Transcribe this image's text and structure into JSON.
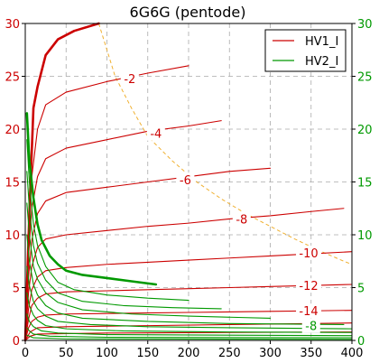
{
  "chart_data": {
    "type": "line",
    "title": "6G6G (pentode)",
    "xlim": [
      0,
      400
    ],
    "ylim_left": [
      0,
      30
    ],
    "ylim_right": [
      0,
      30
    ],
    "x_ticks": [
      "0",
      "50",
      "100",
      "150",
      "200",
      "250",
      "300",
      "350",
      "400"
    ],
    "y_ticks_left": [
      "0",
      "5",
      "10",
      "15",
      "20",
      "25",
      "30"
    ],
    "y_ticks_right": [
      "0",
      "5",
      "10",
      "15",
      "20",
      "25",
      "30"
    ],
    "grid": true,
    "legend": {
      "placement": "top-right",
      "entries": [
        {
          "label": "HV1_I",
          "color": "#cc0000"
        },
        {
          "label": "HV2_I",
          "color": "#009900"
        }
      ]
    },
    "colors": {
      "hv1": "#cc0000",
      "hv2": "#009900",
      "load": "#f0b030",
      "grid": "#aaaaaa"
    },
    "series": [
      {
        "name": "HV1_I",
        "grid_bias": "0",
        "thick": true,
        "points": [
          [
            0,
            0
          ],
          [
            5,
            12
          ],
          [
            10,
            22
          ],
          [
            15,
            24
          ],
          [
            25,
            27
          ],
          [
            40,
            28.5
          ],
          [
            60,
            29.3
          ],
          [
            90,
            30
          ]
        ]
      },
      {
        "name": "HV1_I",
        "grid_bias": "-2",
        "points": [
          [
            0,
            0
          ],
          [
            4,
            10
          ],
          [
            8,
            15.5
          ],
          [
            15,
            20
          ],
          [
            25,
            22.3
          ],
          [
            50,
            23.5
          ],
          [
            100,
            24.5
          ],
          [
            150,
            25.3
          ],
          [
            200,
            26
          ]
        ]
      },
      {
        "name": "HV1_I",
        "grid_bias": "-4",
        "points": [
          [
            0,
            0
          ],
          [
            4,
            8
          ],
          [
            8,
            12.5
          ],
          [
            15,
            15.5
          ],
          [
            25,
            17.2
          ],
          [
            50,
            18.2
          ],
          [
            100,
            19
          ],
          [
            150,
            19.8
          ],
          [
            200,
            20.3
          ],
          [
            240,
            20.8
          ]
        ]
      },
      {
        "name": "HV1_I",
        "grid_bias": "-6",
        "points": [
          [
            0,
            0
          ],
          [
            4,
            6
          ],
          [
            8,
            9.5
          ],
          [
            15,
            12
          ],
          [
            25,
            13.2
          ],
          [
            50,
            14
          ],
          [
            100,
            14.5
          ],
          [
            150,
            15
          ],
          [
            200,
            15.5
          ],
          [
            250,
            16
          ],
          [
            300,
            16.3
          ]
        ]
      },
      {
        "name": "HV1_I",
        "grid_bias": "-8",
        "points": [
          [
            0,
            0
          ],
          [
            4,
            4.5
          ],
          [
            8,
            7
          ],
          [
            15,
            8.8
          ],
          [
            25,
            9.6
          ],
          [
            50,
            10
          ],
          [
            100,
            10.4
          ],
          [
            150,
            10.8
          ],
          [
            200,
            11.1
          ],
          [
            250,
            11.5
          ],
          [
            300,
            11.8
          ],
          [
            350,
            12.2
          ],
          [
            390,
            12.5
          ]
        ]
      },
      {
        "name": "HV1_I",
        "grid_bias": "-10",
        "points": [
          [
            0,
            0
          ],
          [
            4,
            3
          ],
          [
            8,
            4.8
          ],
          [
            15,
            6
          ],
          [
            25,
            6.6
          ],
          [
            50,
            6.9
          ],
          [
            100,
            7.2
          ],
          [
            150,
            7.4
          ],
          [
            200,
            7.6
          ],
          [
            250,
            7.8
          ],
          [
            300,
            8
          ],
          [
            350,
            8.2
          ],
          [
            400,
            8.4
          ]
        ]
      },
      {
        "name": "HV1_I",
        "grid_bias": "-12",
        "points": [
          [
            0,
            0
          ],
          [
            4,
            2
          ],
          [
            8,
            3.3
          ],
          [
            15,
            4
          ],
          [
            25,
            4.4
          ],
          [
            50,
            4.6
          ],
          [
            100,
            4.7
          ],
          [
            150,
            4.8
          ],
          [
            200,
            4.9
          ],
          [
            250,
            5
          ],
          [
            300,
            5.1
          ],
          [
            350,
            5.2
          ],
          [
            400,
            5.3
          ]
        ]
      },
      {
        "name": "HV1_I",
        "grid_bias": "-14",
        "points": [
          [
            0,
            0
          ],
          [
            4,
            1.2
          ],
          [
            8,
            1.8
          ],
          [
            15,
            2.2
          ],
          [
            25,
            2.4
          ],
          [
            50,
            2.5
          ],
          [
            100,
            2.55
          ],
          [
            150,
            2.6
          ],
          [
            200,
            2.65
          ],
          [
            250,
            2.7
          ],
          [
            300,
            2.75
          ],
          [
            350,
            2.8
          ],
          [
            400,
            2.85
          ]
        ]
      },
      {
        "name": "HV1_I",
        "grid_bias": "",
        "points": [
          [
            0,
            0
          ],
          [
            6,
            0.8
          ],
          [
            15,
            1.2
          ],
          [
            50,
            1.3
          ],
          [
            150,
            1.4
          ],
          [
            250,
            1.5
          ],
          [
            350,
            1.6
          ],
          [
            400,
            1.65
          ]
        ]
      },
      {
        "name": "HV1_I",
        "grid_bias": "",
        "points": [
          [
            0,
            0
          ],
          [
            6,
            0.4
          ],
          [
            15,
            0.6
          ],
          [
            100,
            0.7
          ],
          [
            250,
            0.75
          ],
          [
            400,
            0.8
          ]
        ]
      },
      {
        "name": "HV2_I",
        "grid_bias": "0",
        "thick": true,
        "points": [
          [
            2,
            21.5
          ],
          [
            5,
            17
          ],
          [
            10,
            13.5
          ],
          [
            15,
            11
          ],
          [
            20,
            9.5
          ],
          [
            30,
            8
          ],
          [
            40,
            7.2
          ],
          [
            50,
            6.6
          ],
          [
            70,
            6.2
          ],
          [
            100,
            5.9
          ],
          [
            130,
            5.6
          ],
          [
            160,
            5.3
          ]
        ]
      },
      {
        "name": "HV2_I",
        "grid_bias": "",
        "points": [
          [
            2,
            19
          ],
          [
            5,
            15
          ],
          [
            10,
            11
          ],
          [
            15,
            9
          ],
          [
            25,
            7
          ],
          [
            40,
            5.5
          ],
          [
            60,
            4.8
          ],
          [
            100,
            4.3
          ],
          [
            150,
            4
          ],
          [
            200,
            3.8
          ]
        ]
      },
      {
        "name": "HV2_I",
        "grid_bias": "",
        "points": [
          [
            2,
            16
          ],
          [
            5,
            12.5
          ],
          [
            10,
            9
          ],
          [
            15,
            7.3
          ],
          [
            25,
            5.7
          ],
          [
            40,
            4.5
          ],
          [
            70,
            3.7
          ],
          [
            120,
            3.3
          ],
          [
            180,
            3.1
          ],
          [
            240,
            3
          ]
        ]
      },
      {
        "name": "HV2_I",
        "grid_bias": "",
        "points": [
          [
            2,
            13
          ],
          [
            5,
            10
          ],
          [
            10,
            7
          ],
          [
            15,
            5.8
          ],
          [
            25,
            4.5
          ],
          [
            40,
            3.6
          ],
          [
            70,
            2.9
          ],
          [
            130,
            2.5
          ],
          [
            200,
            2.3
          ],
          [
            300,
            2.1
          ]
        ]
      },
      {
        "name": "HV2_I",
        "grid_bias": "",
        "points": [
          [
            2,
            10
          ],
          [
            5,
            7.5
          ],
          [
            10,
            5.3
          ],
          [
            15,
            4.3
          ],
          [
            25,
            3.3
          ],
          [
            40,
            2.6
          ],
          [
            70,
            2.1
          ],
          [
            150,
            1.8
          ],
          [
            250,
            1.6
          ],
          [
            390,
            1.5
          ]
        ]
      },
      {
        "name": "HV2_I",
        "grid_bias": "-8",
        "points": [
          [
            2,
            7
          ],
          [
            5,
            5.2
          ],
          [
            10,
            3.7
          ],
          [
            15,
            3
          ],
          [
            25,
            2.3
          ],
          [
            40,
            1.8
          ],
          [
            80,
            1.5
          ],
          [
            150,
            1.3
          ],
          [
            250,
            1.2
          ],
          [
            400,
            1.1
          ]
        ]
      },
      {
        "name": "HV2_I",
        "grid_bias": "",
        "points": [
          [
            2,
            4.5
          ],
          [
            5,
            3.3
          ],
          [
            10,
            2.4
          ],
          [
            15,
            1.9
          ],
          [
            25,
            1.4
          ],
          [
            50,
            1.1
          ],
          [
            120,
            0.9
          ],
          [
            250,
            0.8
          ],
          [
            400,
            0.75
          ]
        ]
      },
      {
        "name": "HV2_I",
        "grid_bias": "",
        "points": [
          [
            2,
            2.5
          ],
          [
            5,
            1.8
          ],
          [
            10,
            1.3
          ],
          [
            20,
            0.9
          ],
          [
            40,
            0.7
          ],
          [
            100,
            0.55
          ],
          [
            250,
            0.5
          ],
          [
            400,
            0.45
          ]
        ]
      },
      {
        "name": "HV2_I",
        "grid_bias": "",
        "points": [
          [
            2,
            1.2
          ],
          [
            5,
            0.9
          ],
          [
            10,
            0.6
          ],
          [
            30,
            0.4
          ],
          [
            100,
            0.3
          ],
          [
            400,
            0.25
          ]
        ]
      },
      {
        "name": "HV2_I",
        "grid_bias": "",
        "points": [
          [
            2,
            0.5
          ],
          [
            10,
            0.25
          ],
          [
            50,
            0.15
          ],
          [
            400,
            0.1
          ]
        ]
      }
    ],
    "load_line": {
      "points": [
        [
          90,
          30
        ],
        [
          110,
          25
        ],
        [
          130,
          22
        ],
        [
          150,
          19.3
        ],
        [
          180,
          17
        ],
        [
          210,
          15
        ],
        [
          240,
          13.4
        ],
        [
          270,
          12
        ],
        [
          300,
          10.8
        ],
        [
          330,
          9.6
        ],
        [
          360,
          8.5
        ],
        [
          390,
          7.5
        ],
        [
          400,
          7.2
        ]
      ]
    },
    "annotations": [
      {
        "text": "-2",
        "x": 128,
        "y": 24.8,
        "color": "#cc0000"
      },
      {
        "text": "-4",
        "x": 160,
        "y": 19.6,
        "color": "#cc0000"
      },
      {
        "text": "-6",
        "x": 196,
        "y": 15.2,
        "color": "#cc0000"
      },
      {
        "text": "-8",
        "x": 265,
        "y": 11.5,
        "color": "#cc0000"
      },
      {
        "text": "-10",
        "x": 347,
        "y": 8.3,
        "color": "#cc0000"
      },
      {
        "text": "-12",
        "x": 347,
        "y": 5.2,
        "color": "#cc0000"
      },
      {
        "text": "-14",
        "x": 347,
        "y": 2.8,
        "color": "#cc0000"
      },
      {
        "text": "-8",
        "x": 350,
        "y": 1.4,
        "color": "#009900"
      }
    ]
  }
}
